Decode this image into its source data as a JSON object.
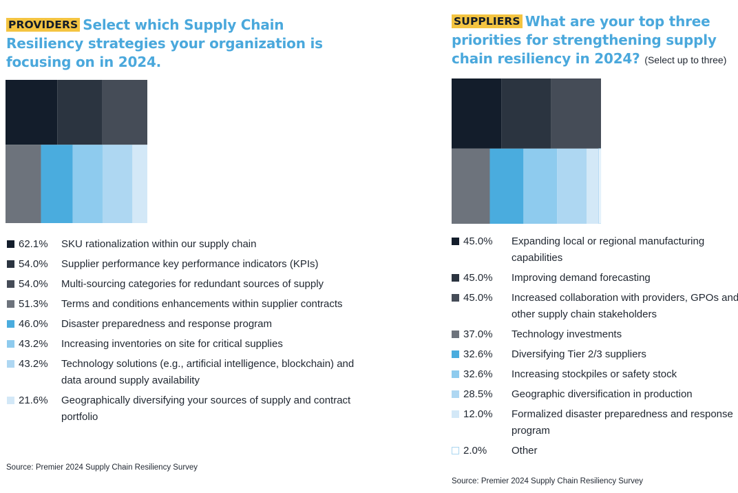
{
  "chart_data": [
    {
      "type": "treemap",
      "tag": "PROVIDERS",
      "title": "Select which Supply Chain Resiliency strategies your organization is focusing on in 2024.",
      "note": "",
      "source": "Source: Premier 2024 Supply Chain Resiliency Survey",
      "categories": [
        "SKU rationalization within our supply chain",
        "Supplier performance key performance indicators (KPIs)",
        "Multi-sourcing categories for redundant sources of supply",
        "Terms and conditions enhancements within supplier contracts",
        "Disaster preparedness and response program",
        "Increasing inventories on site for critical supplies",
        "Technology solutions (e.g., artificial intelligence, blockchain) and data around supply availability",
        "Geographically diversifying your sources of supply and contract portfolio"
      ],
      "values": [
        62.1,
        54.0,
        54.0,
        51.3,
        46.0,
        43.2,
        43.2,
        21.6
      ],
      "value_labels": [
        "62.1%",
        "54.0%",
        "54.0%",
        "51.3%",
        "46.0%",
        "43.2%",
        "43.2%",
        "21.6%"
      ],
      "colors": [
        "#131d2b",
        "#2b3440",
        "#454c57",
        "#6d737c",
        "#4aacde",
        "#8ecbee",
        "#aed7f2",
        "#d3e8f7"
      ]
    },
    {
      "type": "treemap",
      "tag": "SUPPLIERS",
      "title": "What are your top three priorities for strengthening supply chain resiliency in 2024?",
      "note": "(Select up to three)",
      "source": "Source: Premier 2024 Supply Chain Resiliency Survey",
      "categories": [
        "Expanding local or regional manufacturing capabilities",
        "Improving demand forecasting",
        "Increased collaboration with providers, GPOs and other supply chain stakeholders",
        "Technology investments",
        "Diversifying Tier 2/3 suppliers",
        "Increasing stockpiles or safety stock",
        "Geographic diversification in production",
        "Formalized disaster preparedness and response program",
        "Other"
      ],
      "values": [
        45.0,
        45.0,
        45.0,
        37.0,
        32.6,
        32.6,
        28.5,
        12.0,
        2.0
      ],
      "value_labels": [
        "45.0%",
        "45.0%",
        "45.0%",
        "37.0%",
        "32.6%",
        "32.6%",
        "28.5%",
        "12.0%",
        "2.0%"
      ],
      "colors": [
        "#131d2b",
        "#2b3440",
        "#454c57",
        "#6d737c",
        "#4aacde",
        "#8ecbee",
        "#aed7f2",
        "#d3e8f7",
        "#ffffff"
      ],
      "border_colors": [
        null,
        null,
        null,
        null,
        null,
        null,
        null,
        null,
        "#a9d5f0"
      ]
    }
  ]
}
